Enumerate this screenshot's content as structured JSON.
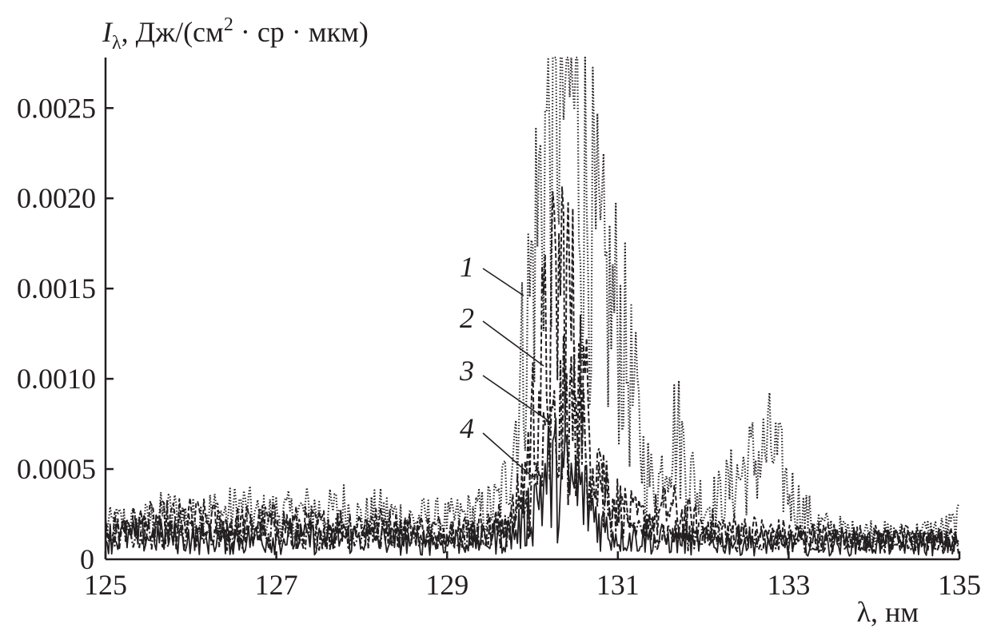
{
  "chart_data": {
    "type": "line",
    "title": "",
    "ylabel_base": "I",
    "ylabel_sub": "λ",
    "ylabel_mid": ", Дж/(см",
    "ylabel_sup": "2",
    "ylabel_end": " · ср · мкм)",
    "xlabel": "λ, нм",
    "xlim": [
      125,
      135
    ],
    "ylim": [
      0,
      0.00278
    ],
    "x_ticks": [
      125,
      127,
      129,
      131,
      133,
      135
    ],
    "x_tick_labels": [
      "125",
      "127",
      "129",
      "131",
      "133",
      "135"
    ],
    "y_ticks": [
      0,
      0.0005,
      0.001,
      0.0015,
      0.002,
      0.0025
    ],
    "y_tick_labels": [
      "0",
      "0.0005",
      "0.0010",
      "0.0015",
      "0.0020",
      "0.0025"
    ],
    "grid": false,
    "series": [
      {
        "name": "1",
        "style": "dotted",
        "x": [
          125.0,
          125.2,
          125.4,
          125.6,
          125.8,
          126.0,
          126.2,
          126.4,
          126.6,
          126.8,
          127.0,
          127.2,
          127.4,
          127.6,
          127.8,
          128.0,
          128.2,
          128.4,
          128.6,
          128.8,
          129.0,
          129.2,
          129.4,
          129.6,
          129.7,
          129.8,
          129.9,
          130.0,
          130.1,
          130.2,
          130.25,
          130.3,
          130.35,
          130.4,
          130.45,
          130.5,
          130.6,
          130.7,
          130.8,
          130.9,
          131.0,
          131.1,
          131.2,
          131.3,
          131.4,
          131.5,
          131.6,
          131.7,
          131.8,
          131.9,
          132.0,
          132.2,
          132.4,
          132.6,
          132.8,
          133.0,
          133.2,
          133.4,
          133.6,
          133.8,
          134.0,
          134.2,
          134.4,
          134.6,
          134.8,
          135.0
        ],
        "y": [
          0.00018,
          0.00021,
          0.00019,
          0.00024,
          0.00026,
          0.00022,
          0.00027,
          0.00025,
          0.00029,
          0.00023,
          0.00026,
          0.00024,
          0.00028,
          0.00025,
          0.00029,
          0.00022,
          0.00026,
          0.00024,
          0.00022,
          0.00023,
          0.00021,
          0.00024,
          0.00026,
          0.00031,
          0.00045,
          0.00075,
          0.00115,
          0.0016,
          0.00205,
          0.0025,
          0.0027,
          0.0028,
          0.00272,
          0.0027,
          0.0026,
          0.00245,
          0.0021,
          0.0018,
          0.0015,
          0.0014,
          0.00135,
          0.0011,
          0.00085,
          0.00055,
          0.0004,
          0.00045,
          0.0007,
          0.0007,
          0.00055,
          0.0004,
          0.0003,
          0.00033,
          0.00045,
          0.00055,
          0.00062,
          0.00038,
          0.00025,
          0.00018,
          0.00016,
          0.00014,
          0.00016,
          0.00013,
          0.00014,
          0.00015,
          0.00016,
          0.0002
        ]
      },
      {
        "name": "2",
        "style": "dashed",
        "x": [
          125.0,
          125.5,
          126.0,
          126.5,
          127.0,
          127.5,
          128.0,
          128.5,
          129.0,
          129.5,
          129.8,
          129.9,
          130.0,
          130.1,
          130.2,
          130.3,
          130.35,
          130.4,
          130.5,
          130.6,
          130.7,
          130.8,
          130.9,
          131.0,
          131.2,
          131.4,
          131.6,
          131.8,
          132.0,
          132.5,
          133.0,
          133.5,
          134.0,
          134.5,
          135.0
        ],
        "y": [
          0.00017,
          0.0002,
          0.00022,
          0.00019,
          0.0002,
          0.00018,
          0.0002,
          0.00017,
          0.00016,
          0.00017,
          0.00025,
          0.00045,
          0.00075,
          0.00105,
          0.0012,
          0.0015,
          0.0016,
          0.0015,
          0.0012,
          0.0009,
          0.00065,
          0.00048,
          0.00038,
          0.0003,
          0.00022,
          0.00022,
          0.00028,
          0.00022,
          0.00018,
          0.00016,
          0.00014,
          0.00013,
          0.00012,
          0.00012,
          0.00011
        ]
      },
      {
        "name": "3",
        "style": "dash-dot",
        "x": [
          125.0,
          125.5,
          126.0,
          126.5,
          127.0,
          127.5,
          128.0,
          128.5,
          129.0,
          129.5,
          129.8,
          130.0,
          130.1,
          130.2,
          130.3,
          130.4,
          130.5,
          130.6,
          130.7,
          130.8,
          130.9,
          131.0,
          131.2,
          131.5,
          132.0,
          132.5,
          133.0,
          133.5,
          134.0,
          134.5,
          135.0
        ],
        "y": [
          0.00013,
          0.00015,
          0.00016,
          0.00014,
          0.00015,
          0.00014,
          0.00015,
          0.00013,
          0.00013,
          0.00014,
          0.0002,
          0.00035,
          0.0005,
          0.0006,
          0.0007,
          0.00078,
          0.0008,
          0.0007,
          0.00055,
          0.0004,
          0.0003,
          0.00022,
          0.00018,
          0.00015,
          0.00013,
          0.00012,
          0.00011,
          0.0001,
          0.0001,
          0.0001,
          9e-05
        ]
      },
      {
        "name": "4",
        "style": "solid",
        "x": [
          125.0,
          125.5,
          126.0,
          126.5,
          127.0,
          127.5,
          128.0,
          128.5,
          129.0,
          129.5,
          129.8,
          129.9,
          130.0,
          130.1,
          130.2,
          130.3,
          130.4,
          130.5,
          130.6,
          130.7,
          130.8,
          130.9,
          131.0,
          131.5,
          132.0,
          132.5,
          133.0,
          133.5,
          134.0,
          134.5,
          135.0
        ],
        "y": [
          0.00012,
          0.00013,
          0.00012,
          0.00011,
          0.00012,
          0.00011,
          0.00012,
          0.0001,
          0.0001,
          0.00011,
          0.00015,
          0.0002,
          0.0003,
          0.0004,
          0.00045,
          0.00045,
          0.00042,
          0.0004,
          0.00035,
          0.00028,
          0.0002,
          0.00015,
          0.00013,
          0.00011,
          0.0001,
          0.0001,
          9e-05,
          9e-05,
          9e-05,
          9e-05,
          9e-05
        ]
      }
    ],
    "labels": [
      {
        "text": "1",
        "series": "1"
      },
      {
        "text": "2",
        "series": "2"
      },
      {
        "text": "3",
        "series": "3"
      },
      {
        "text": "4",
        "series": "4"
      }
    ]
  }
}
